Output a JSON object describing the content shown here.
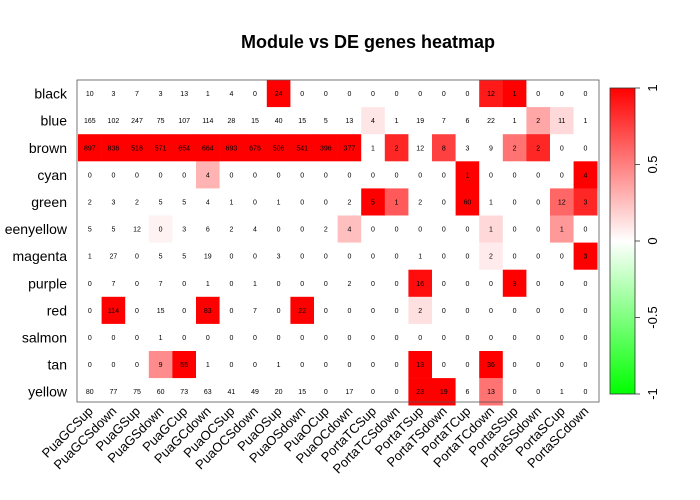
{
  "chart_data": {
    "type": "heatmap",
    "title": "Module vs DE genes heatmap",
    "rows": [
      "black",
      "blue",
      "brown",
      "cyan",
      "green",
      "greenyellow",
      "magenta",
      "purple",
      "red",
      "salmon",
      "tan",
      "yellow"
    ],
    "row_labels_shown": [
      "black",
      "blue",
      "brown",
      "cyan",
      "green",
      "eenyellow",
      "magenta",
      "purple",
      "red",
      "salmon",
      "tan",
      "yellow"
    ],
    "columns": [
      "PuaGCSup",
      "PuaGCSdown",
      "PuaGSup",
      "PuaGSdown",
      "PuaGCup",
      "PuaGCdown",
      "PuaOCSup",
      "PuaOCSdown",
      "PuaOSup",
      "PuaOSdown",
      "PuaOCup",
      "PuaOCdown",
      "PortaTCSup",
      "PortaTCSdown",
      "PortaTSup",
      "PortaTSdown",
      "PortaTCup",
      "PortaTCdown",
      "PortaSSup",
      "PortaSSdown",
      "PortaSCup",
      "PortaSCdown"
    ],
    "values": [
      [
        10,
        3,
        7,
        3,
        13,
        1,
        4,
        0,
        24,
        0,
        0,
        0,
        0,
        0,
        0,
        0,
        0,
        12,
        1,
        0,
        0,
        0
      ],
      [
        165,
        102,
        247,
        75,
        107,
        114,
        28,
        15,
        40,
        15,
        5,
        13,
        4,
        1,
        19,
        7,
        6,
        22,
        1,
        2,
        11,
        1
      ],
      [
        897,
        836,
        518,
        571,
        654,
        664,
        693,
        676,
        506,
        541,
        396,
        377,
        1,
        2,
        12,
        8,
        3,
        9,
        2,
        2,
        0,
        0
      ],
      [
        0,
        0,
        0,
        0,
        0,
        4,
        0,
        0,
        0,
        0,
        0,
        0,
        0,
        0,
        0,
        0,
        1,
        0,
        0,
        0,
        0,
        4
      ],
      [
        2,
        3,
        2,
        5,
        5,
        4,
        1,
        0,
        1,
        0,
        0,
        2,
        5,
        1,
        2,
        0,
        60,
        1,
        0,
        0,
        12,
        3
      ],
      [
        5,
        5,
        12,
        0,
        3,
        6,
        2,
        4,
        0,
        0,
        2,
        4,
        0,
        0,
        0,
        0,
        0,
        1,
        0,
        0,
        1,
        0
      ],
      [
        1,
        27,
        0,
        5,
        5,
        19,
        0,
        0,
        3,
        0,
        0,
        0,
        0,
        0,
        1,
        0,
        0,
        2,
        0,
        0,
        0,
        3
      ],
      [
        0,
        7,
        0,
        7,
        0,
        1,
        0,
        1,
        0,
        0,
        0,
        2,
        0,
        0,
        16,
        0,
        0,
        0,
        3,
        0,
        0,
        0
      ],
      [
        0,
        114,
        0,
        15,
        0,
        83,
        0,
        7,
        0,
        22,
        0,
        0,
        0,
        0,
        2,
        0,
        0,
        0,
        0,
        0,
        0,
        0
      ],
      [
        0,
        0,
        0,
        1,
        0,
        0,
        0,
        0,
        0,
        0,
        0,
        0,
        0,
        0,
        0,
        0,
        0,
        0,
        0,
        0,
        0,
        0
      ],
      [
        0,
        0,
        0,
        9,
        55,
        1,
        0,
        0,
        1,
        0,
        0,
        0,
        0,
        0,
        13,
        0,
        0,
        36,
        0,
        0,
        0,
        0
      ],
      [
        80,
        77,
        75,
        60,
        73,
        63,
        41,
        49,
        20,
        15,
        0,
        17,
        0,
        0,
        23,
        19,
        6,
        13,
        0,
        0,
        1,
        0
      ]
    ],
    "color_values": [
      [
        0,
        0,
        0,
        0,
        0,
        0,
        0,
        0,
        1,
        0,
        0,
        0,
        0,
        0,
        0,
        0,
        0,
        0.9,
        1,
        0,
        0,
        0
      ],
      [
        0,
        0,
        0,
        0,
        0,
        0,
        0,
        0,
        0,
        0,
        0,
        0,
        0.1,
        0,
        0,
        0,
        0,
        0,
        0,
        0.35,
        0.15,
        0
      ],
      [
        1,
        1,
        1,
        1,
        1,
        1,
        1,
        1,
        1,
        1,
        1,
        1,
        0,
        0.85,
        0,
        0.75,
        0,
        0,
        0.55,
        0.85,
        0,
        0
      ],
      [
        0,
        0,
        0,
        0,
        0,
        0.3,
        0,
        0,
        0,
        0,
        0,
        0,
        0,
        0,
        0,
        0,
        1,
        0,
        0,
        0,
        0,
        1
      ],
      [
        0,
        0,
        0,
        0,
        0,
        0,
        0,
        0,
        0,
        0,
        0,
        0,
        1,
        0.65,
        0,
        0,
        1,
        0,
        0,
        0,
        0.6,
        0.85
      ],
      [
        0,
        0,
        0,
        0.05,
        0,
        0,
        0,
        0,
        0,
        0,
        0,
        0.25,
        0,
        0,
        0,
        0,
        0,
        0.15,
        0,
        0,
        0.4,
        0
      ],
      [
        0,
        0,
        0,
        0,
        0,
        0,
        0,
        0,
        0,
        0,
        0,
        0,
        0,
        0,
        0,
        0,
        0,
        0.08,
        0,
        0,
        0,
        1
      ],
      [
        0,
        0,
        0,
        0,
        0,
        0,
        0,
        0,
        0,
        0,
        0,
        0,
        0,
        0,
        0.95,
        0,
        0,
        0,
        1,
        0,
        0,
        0
      ],
      [
        0,
        1,
        0,
        0,
        0,
        1,
        0,
        0,
        0,
        1,
        0,
        0,
        0,
        0,
        0.12,
        0,
        0,
        0,
        0,
        0,
        0,
        0
      ],
      [
        0,
        0,
        0,
        0,
        0,
        0,
        0,
        0,
        0,
        0,
        0,
        0,
        0,
        0,
        0,
        0,
        0,
        0,
        0,
        0,
        0,
        0
      ],
      [
        0,
        0,
        0,
        0.45,
        1,
        0,
        0,
        0,
        0,
        0,
        0,
        0,
        0,
        0,
        1,
        0,
        0,
        1,
        0,
        0,
        0,
        0
      ],
      [
        0,
        0,
        0,
        0,
        0,
        0,
        0,
        0,
        0,
        0,
        0,
        0,
        0,
        0,
        1,
        1,
        0,
        0.55,
        0,
        0,
        0,
        0
      ]
    ],
    "colorscale": {
      "low": "#00ff00",
      "mid": "#ffffff",
      "high": "#ff0000",
      "range": [
        -1,
        1
      ]
    },
    "legend": {
      "ticks": [
        "1",
        "0.5",
        "0",
        "-0.5",
        "-1"
      ],
      "tick_values": [
        1,
        0.5,
        0,
        -0.5,
        -1
      ],
      "placement": "right"
    }
  }
}
